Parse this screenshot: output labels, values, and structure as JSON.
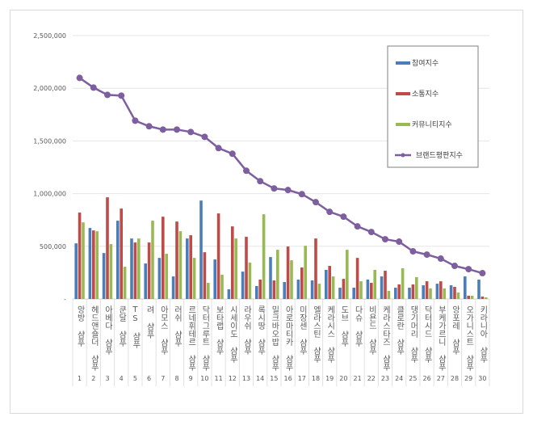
{
  "chart_data": {
    "type": "bar",
    "title": "",
    "xlabel": "",
    "ylabel": "",
    "ylim": [
      0,
      2500000
    ],
    "yticks": [
      "-",
      "500,000",
      "1,000,000",
      "1,500,000",
      "2,000,000",
      "2,500,000"
    ],
    "ytick_values": [
      0,
      500000,
      1000000,
      1500000,
      2000000,
      2500000
    ],
    "grid": true,
    "legend_position": "right",
    "ranks": [
      "1",
      "2",
      "3",
      "4",
      "5",
      "6",
      "7",
      "8",
      "9",
      "10",
      "11",
      "12",
      "13",
      "14",
      "15",
      "16",
      "17",
      "18",
      "19",
      "20",
      "21",
      "22",
      "23",
      "24",
      "25",
      "26",
      "27",
      "28",
      "29",
      "30"
    ],
    "categories": [
      "앙방 샴푸",
      "헤드앤숄더 샴푸",
      "아베다 샴푸",
      "쿤달 샴푸",
      "TS 샴푸",
      "려 샴푸",
      "아모스 샴푸",
      "러쉬 샴푸",
      "르네휘테르 샴푸",
      "닥터그루트 샴푸",
      "보타랩 샴푸",
      "시세이도 샴푸",
      "라우쉬 샴푸",
      "록시땅 샴푸",
      "밀크바오밥 샴푸",
      "아로마티카 샴푸",
      "미장센 샴푸",
      "엘라스틴 샴푸",
      "케라시스 샴푸",
      "도브 샴푸",
      "다슈 샴푸",
      "비욘드 샴푸",
      "케라스타즈 샴푸",
      "클로란 샴푸",
      "댕기머리 샴푸",
      "닥터시드 샴푸",
      "부케가르니 샴푸",
      "앙포레 샴푸",
      "오가니스트 샴푸",
      "키라니아 샴푸"
    ],
    "series": [
      {
        "name": "참여지수",
        "type": "bar",
        "color": "#4a7ebb",
        "values": [
          528000,
          674000,
          436000,
          743000,
          574000,
          337000,
          390000,
          214000,
          574000,
          934000,
          375000,
          92000,
          260000,
          123000,
          398000,
          161000,
          184000,
          176000,
          276000,
          107000,
          107000,
          184000,
          214000,
          107000,
          107000,
          130000,
          145000,
          130000,
          214000,
          184000
        ]
      },
      {
        "name": "소통지수",
        "type": "bar",
        "color": "#be4b48",
        "values": [
          820000,
          651000,
          965000,
          858000,
          536000,
          536000,
          781000,
          735000,
          605000,
          444000,
          812000,
          689000,
          590000,
          184000,
          176000,
          498000,
          299000,
          574000,
          314000,
          191000,
          390000,
          153000,
          268000,
          138000,
          138000,
          168000,
          168000,
          115000,
          31000,
          23000
        ]
      },
      {
        "name": "커뮤니티지수",
        "type": "bar",
        "color": "#98b954",
        "values": [
          727000,
          643000,
          521000,
          306000,
          574000,
          743000,
          429000,
          643000,
          390000,
          153000,
          230000,
          574000,
          345000,
          804000,
          467000,
          367000,
          505000,
          145000,
          214000,
          467000,
          168000,
          276000,
          77000,
          291000,
          207000,
          100000,
          100000,
          61000,
          31000,
          15000
        ]
      },
      {
        "name": "브랜드평판지수",
        "type": "line",
        "color": "#7d5fa0",
        "values": [
          2098000,
          2006000,
          1937000,
          1930000,
          1692000,
          1639000,
          1608000,
          1608000,
          1585000,
          1539000,
          1432000,
          1378000,
          1217000,
          1118000,
          1049000,
          1034000,
          995000,
          919000,
          827000,
          781000,
          689000,
          636000,
          567000,
          544000,
          452000,
          421000,
          383000,
          314000,
          283000,
          245000
        ]
      }
    ]
  }
}
